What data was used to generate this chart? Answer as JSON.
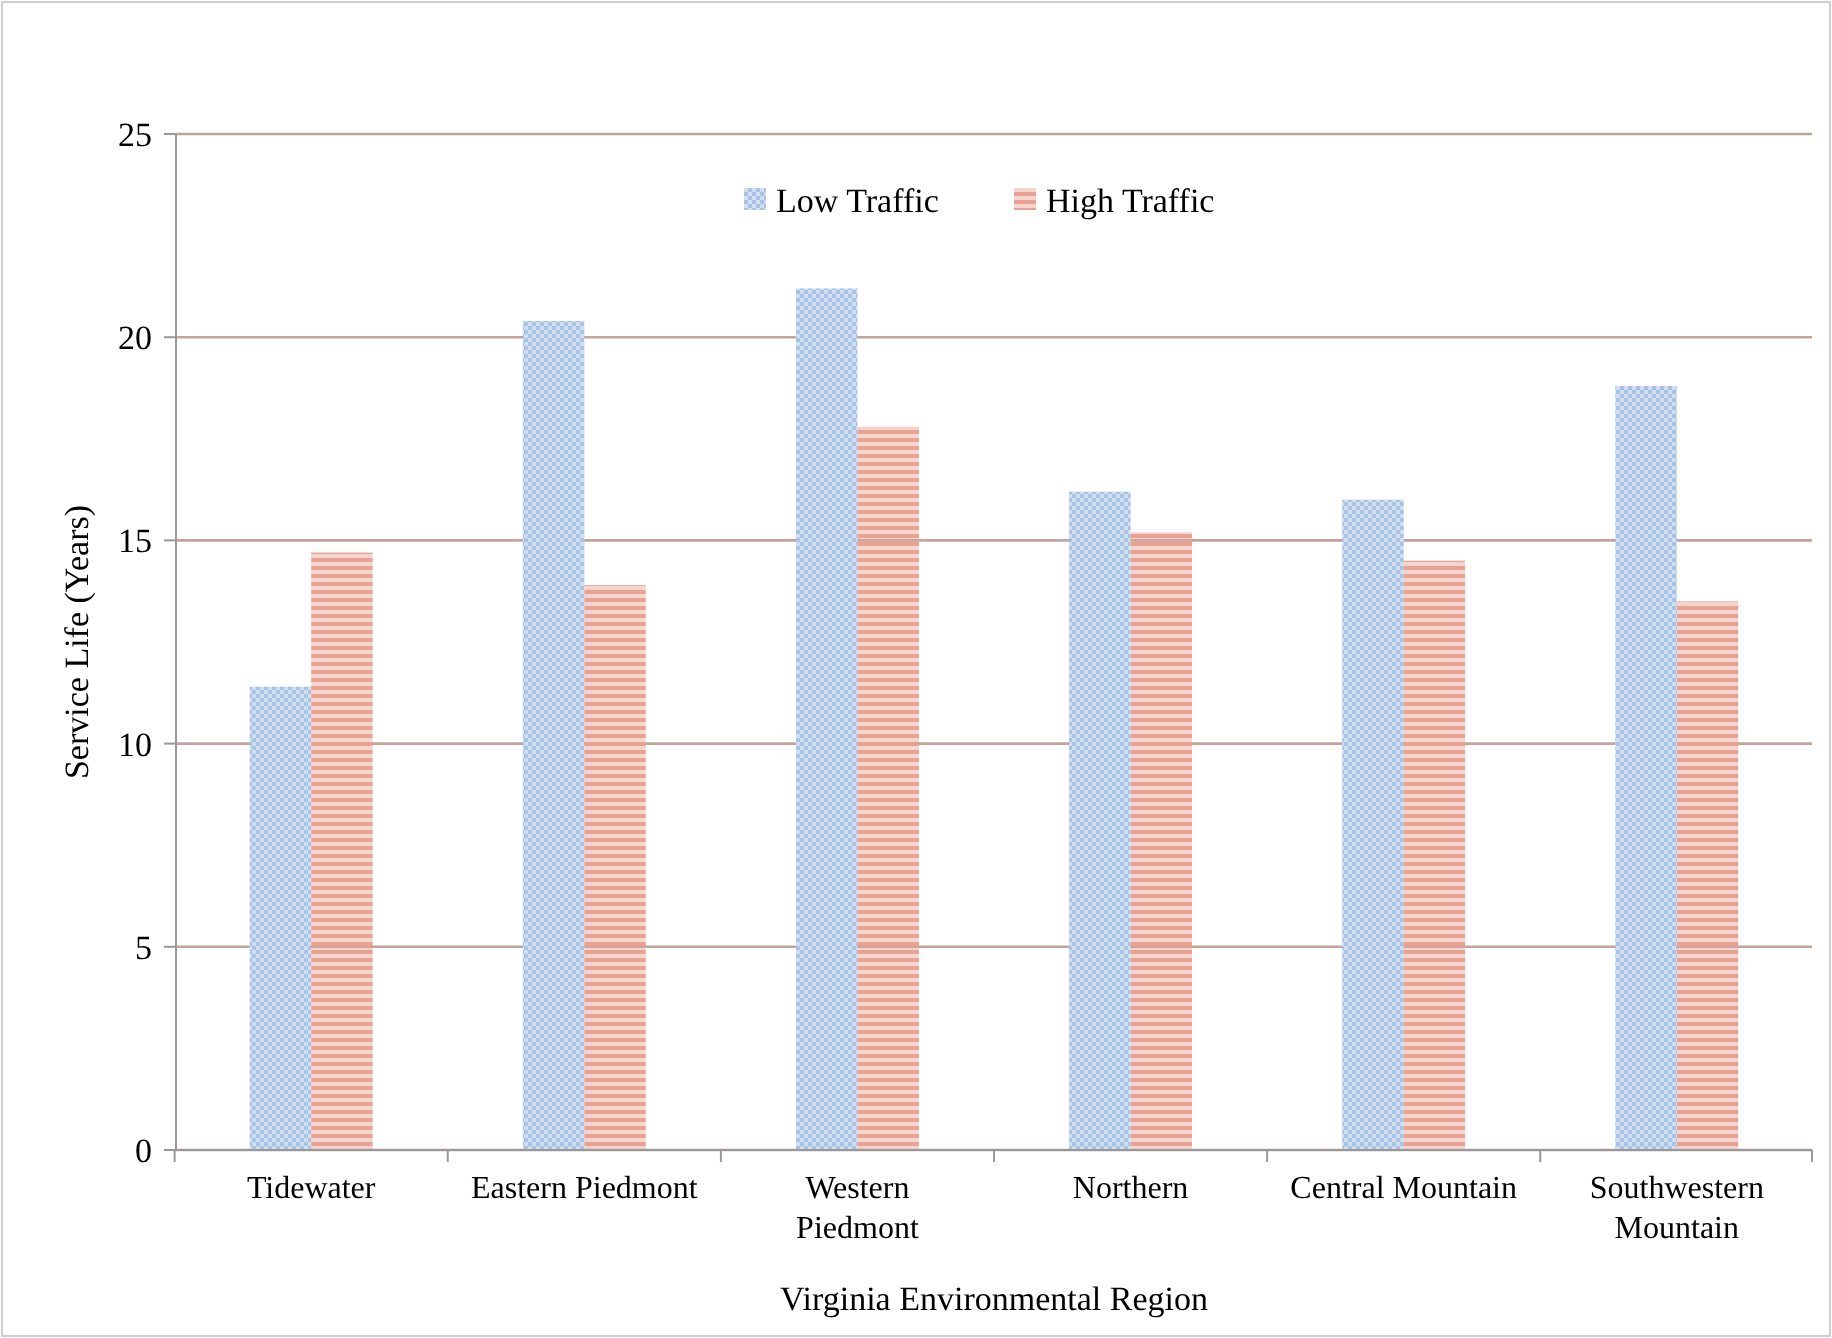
{
  "chart_data": {
    "type": "bar",
    "xlabel": "Virginia Environmental Region",
    "ylabel": "Service Life (Years)",
    "categories": [
      "Tidewater",
      "Eastern Piedmont",
      "Western\nPiedmont",
      "Northern",
      "Central Mountain",
      "Southwestern\nMountain"
    ],
    "series": [
      {
        "name": "Low Traffic",
        "color": "#a8c2e4",
        "values": [
          11.4,
          20.4,
          21.2,
          16.2,
          16.0,
          18.8
        ]
      },
      {
        "name": "High Traffic",
        "color": "#e8a293",
        "values": [
          14.7,
          13.9,
          17.8,
          15.2,
          14.5,
          13.5
        ]
      }
    ],
    "ylim": [
      0,
      25
    ],
    "yticks": [
      0,
      5,
      10,
      15,
      20,
      25
    ],
    "grid": "y",
    "legend": "top"
  }
}
